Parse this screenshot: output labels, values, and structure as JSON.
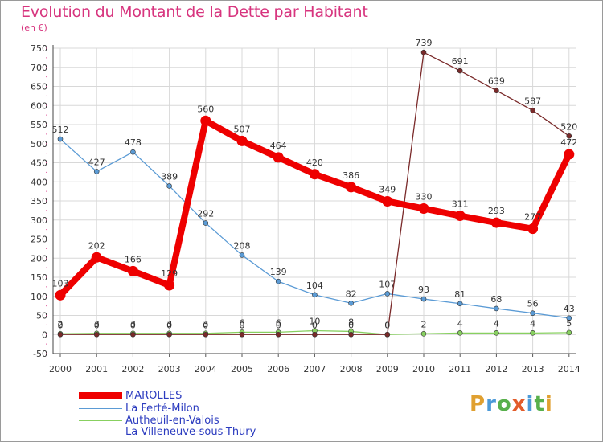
{
  "title": "Evolution du Montant de la Dette par Habitant",
  "unit_label": "(en €)",
  "logo": {
    "text": "Proxiti",
    "letters": [
      {
        "ch": "P",
        "color": "#e0a030"
      },
      {
        "ch": "r",
        "color": "#4c9ad8"
      },
      {
        "ch": "o",
        "color": "#58b04c"
      },
      {
        "ch": "x",
        "color": "#e25c2a"
      },
      {
        "ch": "i",
        "color": "#4c9ad8"
      },
      {
        "ch": "t",
        "color": "#58b04c"
      },
      {
        "ch": "i",
        "color": "#e0a030"
      }
    ]
  },
  "chart_data": {
    "type": "line",
    "x": [
      "2000",
      "2001",
      "2002",
      "2003",
      "2004",
      "2005",
      "2006",
      "2007",
      "2008",
      "2009",
      "2010",
      "2011",
      "2012",
      "2013",
      "2014"
    ],
    "ylim": [
      -50,
      750
    ],
    "yticks": [
      -50,
      0,
      50,
      100,
      150,
      200,
      250,
      300,
      350,
      400,
      450,
      500,
      550,
      600,
      650,
      700,
      750
    ],
    "grid": true,
    "legend_position": "bottom-left",
    "series": [
      {
        "name": "La Ferté-Milon",
        "color": "#5b9bd5",
        "values": [
          512,
          427,
          478,
          389,
          292,
          208,
          139,
          104,
          82,
          107,
          93,
          81,
          68,
          56,
          43
        ],
        "labels": [
          "512",
          "427",
          "478",
          "389",
          "292",
          "208",
          "139",
          "104",
          "82",
          "107",
          "93",
          "81",
          "68",
          "56",
          "43"
        ]
      },
      {
        "name": "Autheuil-en-Valois",
        "color": "#88d060",
        "values": [
          2,
          3,
          3,
          3,
          3,
          6,
          6,
          10,
          8,
          0,
          2,
          4,
          4,
          4,
          5
        ],
        "labels": [
          "2",
          "3",
          "3",
          "3",
          "3",
          "6",
          "6",
          "10",
          "8",
          "0",
          "2",
          "4",
          "4",
          "4",
          "5"
        ]
      },
      {
        "name": "La Villeneuve-sous-Thury",
        "color": "#7a2a2a",
        "values": [
          0,
          0,
          0,
          0,
          0,
          0,
          0,
          0,
          0,
          0,
          739,
          691,
          639,
          587,
          520
        ],
        "labels": [
          "0",
          "0",
          "0",
          "0",
          "0",
          "0",
          "0",
          "0",
          "0",
          "0",
          "739",
          "691",
          "639",
          "587",
          "520"
        ]
      },
      {
        "name": "MAROLLES",
        "color": "#ee0000",
        "values": [
          103,
          202,
          166,
          129,
          560,
          507,
          464,
          420,
          386,
          349,
          330,
          311,
          293,
          277,
          472
        ],
        "labels": [
          "103",
          "202",
          "166",
          "129",
          "560",
          "507",
          "464",
          "420",
          "386",
          "349",
          "330",
          "311",
          "293",
          "277",
          "472"
        ]
      }
    ],
    "legend": [
      "MAROLLES",
      "La Ferté-Milon",
      "Autheuil-en-Valois",
      "La Villeneuve-sous-Thury"
    ]
  }
}
